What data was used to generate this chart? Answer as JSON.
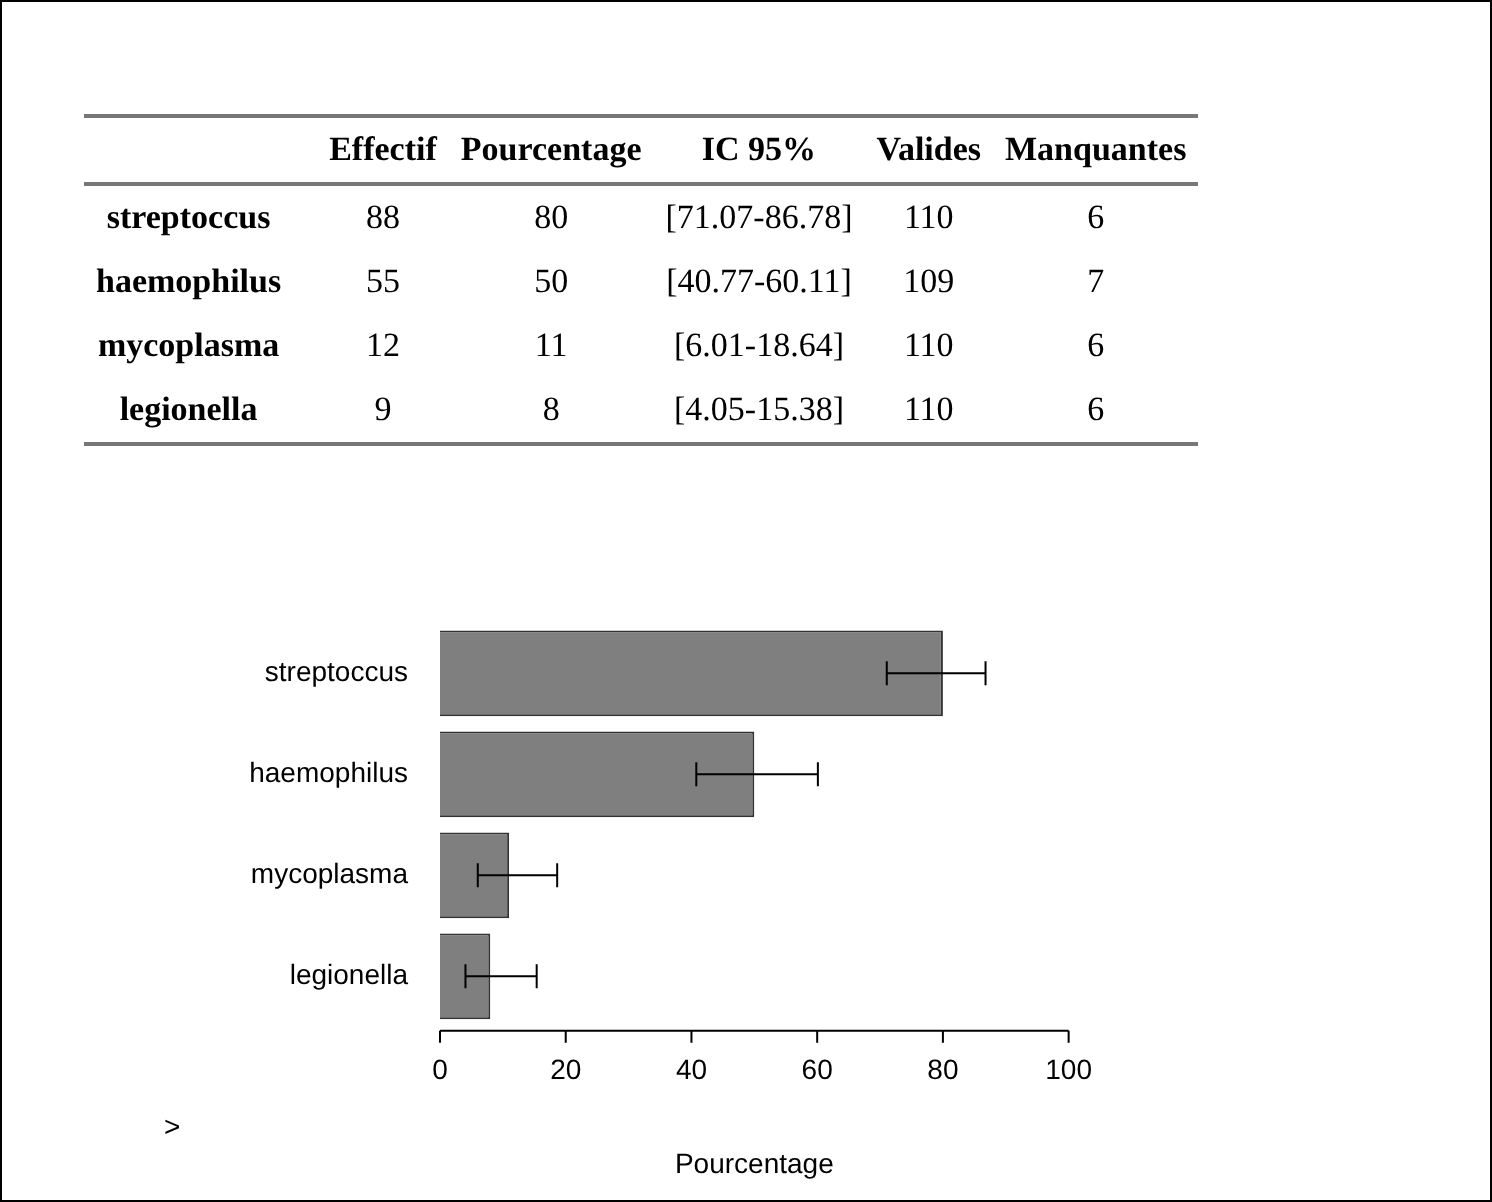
{
  "chart_data": {
    "type": "bar",
    "orientation": "horizontal",
    "categories": [
      "streptoccus",
      "haemophilus",
      "mycoplasma",
      "legionella"
    ],
    "values": [
      80,
      50,
      11,
      8
    ],
    "errors": [
      [
        71.07,
        86.78
      ],
      [
        40.77,
        60.11
      ],
      [
        6.01,
        18.64
      ],
      [
        4.05,
        15.38
      ]
    ],
    "color": "#7f7f7f",
    "xlim": [
      0,
      100
    ],
    "xticks": [
      0,
      20,
      40,
      60,
      80,
      100
    ],
    "xlabel": "Pourcentage",
    "grid": false,
    "legend": false,
    "annotations": [
      "Effectif",
      "Pourcentage",
      "IC    95%",
      "Valides",
      "Manquantes",
      "88",
      "80",
      "[71.07-86.78]",
      "110",
      "6",
      "55",
      "50",
      "[40.77-60.11]",
      "109",
      "7",
      "12",
      "11",
      "[6.01-18.64]",
      "110",
      "6",
      "9",
      "8",
      "[4.05-15.38]",
      "110",
      "6",
      ">"
    ]
  }
}
